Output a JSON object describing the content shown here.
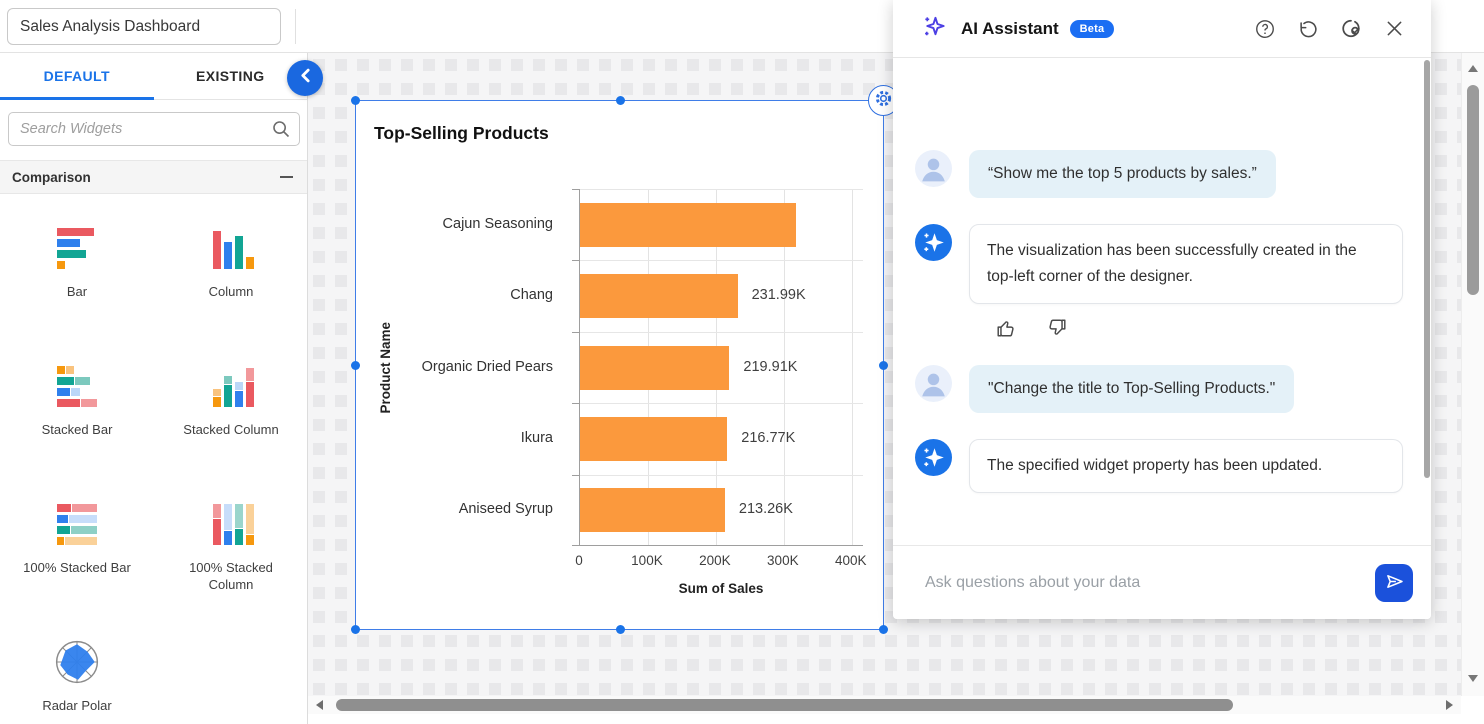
{
  "header": {
    "dashboard_title": "Sales Analysis Dashboard"
  },
  "sidebar": {
    "tabs": [
      {
        "label": "DEFAULT"
      },
      {
        "label": "EXISTING"
      }
    ],
    "search_placeholder": "Search Widgets",
    "section_title": "Comparison",
    "widgets": [
      {
        "label": "Bar",
        "icon": "bar-chart-icon"
      },
      {
        "label": "Column",
        "icon": "column-chart-icon"
      },
      {
        "label": "Stacked Bar",
        "icon": "stacked-bar-icon"
      },
      {
        "label": "Stacked Column",
        "icon": "stacked-column-icon"
      },
      {
        "label": "100% Stacked Bar",
        "icon": "stacked-bar-100-icon"
      },
      {
        "label": "100% Stacked Column",
        "icon": "stacked-column-100-icon"
      },
      {
        "label": "Radar Polar",
        "icon": "radar-polar-icon"
      }
    ]
  },
  "chart_data": {
    "type": "bar",
    "orientation": "horizontal",
    "title": "Top-Selling Products",
    "categories": [
      "Cajun Seasoning",
      "Chang",
      "Organic Dried Pears",
      "Ikura",
      "Aniseed Syrup"
    ],
    "values_k": [
      318,
      231.99,
      219.91,
      216.77,
      213.26
    ],
    "data_labels": [
      "",
      "231.99K",
      "219.91K",
      "216.77K",
      "213.26K"
    ],
    "x_tick_values_k": [
      0,
      100,
      200,
      300,
      400
    ],
    "x_ticks": [
      "0",
      "100K",
      "200K",
      "300K",
      "400K"
    ],
    "xlim_k": [
      0,
      418
    ],
    "xlabel": "Sum of Sales",
    "ylabel": "Product Name",
    "bar_color": "#FB993D",
    "grid": true,
    "legend": "none"
  },
  "ai_panel": {
    "title": "AI Assistant",
    "badge": "Beta",
    "messages": [
      {
        "role": "user",
        "text": "“Show me the top 5 products by sales.”"
      },
      {
        "role": "assistant",
        "text": "The visualization has been successfully created in the top-left corner of the designer.",
        "feedback": true
      },
      {
        "role": "user",
        "text": "\"Change the title to Top-Selling Products.\""
      },
      {
        "role": "assistant",
        "text": "The specified widget property has been updated.",
        "feedback": false
      }
    ],
    "input_placeholder": "Ask questions about your data"
  },
  "colors": {
    "accent_blue": "#1A73E8",
    "send_button": "#1B51DB",
    "sparkle_indigo": "#4C3FE4",
    "bar_orange": "#FB993D",
    "user_bubble": "#E4F1F8",
    "canvas_bg": "#F5F5F6",
    "canvas_square": "#E8E8EA"
  }
}
